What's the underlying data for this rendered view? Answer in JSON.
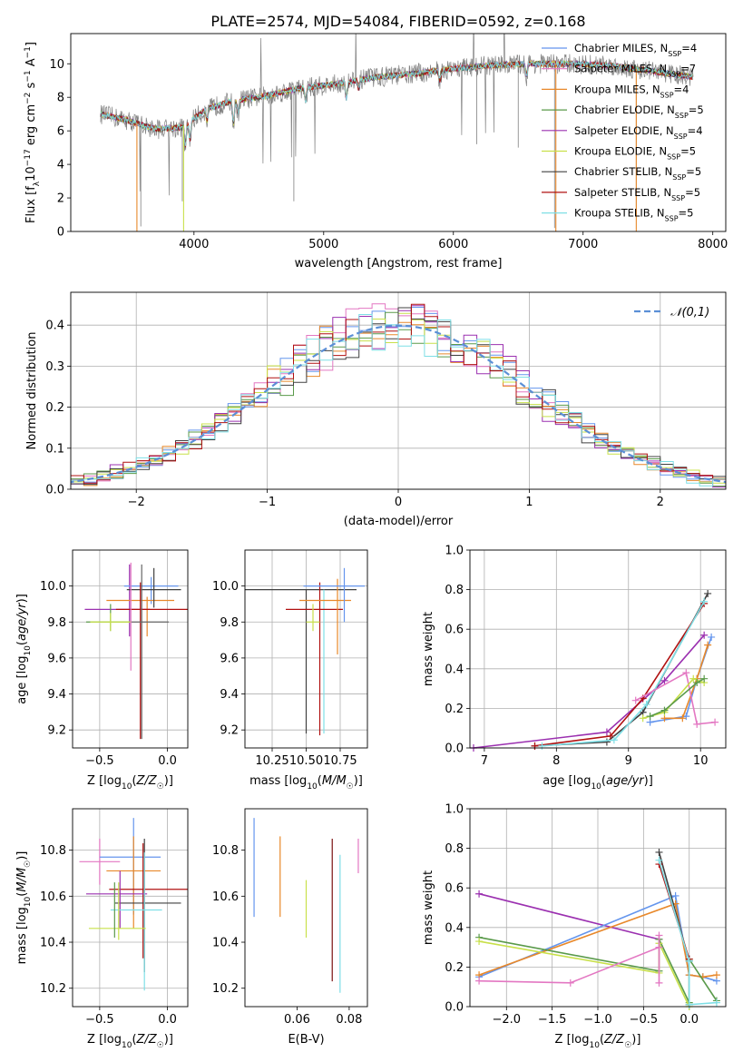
{
  "figure_title": "PLATE=2574, MJD=54084, FIBERID=0592, z=0.168",
  "colors": {
    "Chabrier MILES": "#1f77b4",
    "Salpeter MILES": "#e377c2",
    "Kroupa MILES": "#ff7f0e",
    "Chabrier ELODIE": "#7f7f7f",
    "Salpeter ELODIE": "#9467bd",
    "Kroupa ELODIE": "#bcbd22",
    "Chabrier STELIB": "#404040",
    "Salpeter STELIB": "#d62728",
    "Kroupa STELIB": "#17becf",
    "Chabrier MILES line": "#6495ed",
    "Kroupa STELIB line": "#7fdfe6",
    "gaussian": "#5b8fd6",
    "grid": "#b0b0b0"
  },
  "chart_data": [
    {
      "id": "spectrum",
      "type": "line",
      "xlabel": "wavelength [Angstrom, rest frame]",
      "ylabel": "Flux [f_λ10^-17 erg cm^-2 s^-1 A^-1]",
      "xlim": [
        3050,
        8100
      ],
      "ylim": [
        0,
        11.8
      ],
      "xticks": [
        4000,
        5000,
        6000,
        7000,
        8000
      ],
      "yticks": [
        0,
        2,
        4,
        6,
        8,
        10
      ],
      "grid": false,
      "legend_position": "right",
      "legend": [
        {
          "label": "Chabrier MILES, N",
          "sub": "SSP",
          "tail": "=4",
          "color": "#6495ed"
        },
        {
          "label": "Salpeter MILES, N",
          "sub": "SSP",
          "tail": "=7",
          "color": "#e377c2"
        },
        {
          "label": "Kroupa MILES, N",
          "sub": "SSP",
          "tail": "=4",
          "color": "#e8882a"
        },
        {
          "label": "Chabrier ELODIE, N",
          "sub": "SSP",
          "tail": "=5",
          "color": "#5a9a4a"
        },
        {
          "label": "Salpeter ELODIE, N",
          "sub": "SSP",
          "tail": "=4",
          "color": "#9b30b0"
        },
        {
          "label": "Kroupa ELODIE, N",
          "sub": "SSP",
          "tail": "=5",
          "color": "#c8e04a"
        },
        {
          "label": "Chabrier STELIB, N",
          "sub": "SSP",
          "tail": "=5",
          "color": "#404040"
        },
        {
          "label": "Salpeter STELIB, N",
          "sub": "SSP",
          "tail": "=5",
          "color": "#b01010"
        },
        {
          "label": "Kroupa STELIB, N",
          "sub": "SSP",
          "tail": "=5",
          "color": "#7fdfe6"
        }
      ],
      "continuum": {
        "x": [
          3280,
          3500,
          3700,
          3900,
          4100,
          4300,
          4500,
          4800,
          5100,
          5400,
          5700,
          6000,
          6300,
          6600,
          6900,
          7200,
          7500,
          7850
        ],
        "y": [
          7.0,
          6.6,
          6.1,
          6.2,
          7.3,
          7.8,
          8.0,
          8.5,
          8.8,
          9.2,
          9.4,
          9.7,
          9.9,
          10.0,
          10.0,
          9.9,
          9.6,
          9.2
        ]
      },
      "model_extent": [
        3280,
        7850
      ]
    },
    {
      "id": "residuals",
      "type": "histogram",
      "xlabel": "(data-model)/error",
      "ylabel": "Normed distribution",
      "xlim": [
        -2.5,
        2.5
      ],
      "ylim": [
        0,
        0.48
      ],
      "xticks": [
        -2,
        -1,
        0,
        1,
        2
      ],
      "yticks": [
        0.0,
        0.1,
        0.2,
        0.3,
        0.4
      ],
      "grid": true,
      "legend_position": "upper right",
      "legend_label": "𝒩(0,1)",
      "bin_width": 0.1,
      "series_count": 9
    },
    {
      "id": "age_vs_Z",
      "type": "errorbar",
      "xlabel": "Z [log10(Z/Z☉)]",
      "ylabel": "age [log10(age/yr)]",
      "xlim": [
        -0.7,
        0.15
      ],
      "ylim": [
        9.1,
        10.2
      ],
      "xticks": [
        -0.5,
        0.0
      ],
      "yticks": [
        9.2,
        9.4,
        9.6,
        9.8,
        10.0
      ],
      "grid": true,
      "points": [
        {
          "x": -0.28,
          "y": 9.87,
          "xerr": [
            0.33,
            0.15
          ],
          "yerr": [
            0.15,
            0.25
          ],
          "color": "#9b30b0"
        },
        {
          "x": -0.12,
          "y": 10.0,
          "xerr": [
            0.2,
            0.2
          ],
          "yerr": [
            0.1,
            0.05
          ],
          "color": "#6495ed"
        },
        {
          "x": -0.15,
          "y": 9.92,
          "xerr": [
            0.3,
            0.2
          ],
          "yerr": [
            0.2,
            0.02
          ],
          "color": "#e8882a"
        },
        {
          "x": -0.1,
          "y": 9.98,
          "xerr": [
            0.2,
            0.2
          ],
          "yerr": [
            0.1,
            0.12
          ],
          "color": "#404040"
        },
        {
          "x": -0.2,
          "y": 9.87,
          "xerr": [
            0.18,
            0.38
          ],
          "yerr": [
            0.72,
            0.15
          ],
          "color": "#b01010"
        },
        {
          "x": -0.42,
          "y": 9.8,
          "xerr": [
            0.18,
            0.15
          ],
          "yerr": [
            0.05,
            0.1
          ],
          "color": "#5a9a4a"
        },
        {
          "x": -0.42,
          "y": 9.8,
          "xerr": [
            0.15,
            0.15
          ],
          "yerr": [
            0.05,
            0.05
          ],
          "color": "#c8e04a"
        },
        {
          "x": -0.19,
          "y": 9.8,
          "xerr": [
            0.08,
            0.2
          ],
          "yerr": [
            0.65,
            0.32
          ],
          "color": "#666666"
        },
        {
          "x": -0.27,
          "y": 9.93,
          "xerr": [
            0.0,
            0.0
          ],
          "yerr": [
            0.4,
            0.2
          ],
          "color": "#e377c2"
        }
      ]
    },
    {
      "id": "age_vs_mass",
      "type": "errorbar",
      "xlabel": "mass [log10(M/M☉)]",
      "ylabel": "",
      "xlim": [
        10.05,
        10.95
      ],
      "ylim": [
        9.1,
        10.2
      ],
      "xticks": [
        10.25,
        10.5,
        10.75
      ],
      "yticks": [
        9.2,
        9.4,
        9.6,
        9.8,
        10.0
      ],
      "grid": true,
      "points": [
        {
          "x": 10.5,
          "y": 9.98,
          "xerr": [
            0.46,
            0.37
          ],
          "yerr": [
            0.8,
            0.0
          ],
          "color": "#404040"
        },
        {
          "x": 10.63,
          "y": 9.93,
          "xerr": [
            0.0,
            0.0
          ],
          "yerr": [
            0.75,
            0.05
          ],
          "color": "#7fdfe6"
        },
        {
          "x": 10.6,
          "y": 9.87,
          "xerr": [
            0.25,
            0.17
          ],
          "yerr": [
            0.7,
            0.15
          ],
          "color": "#b01010"
        },
        {
          "x": 10.73,
          "y": 9.92,
          "xerr": [
            0.28,
            0.1
          ],
          "yerr": [
            0.3,
            0.12
          ],
          "color": "#e8882a"
        },
        {
          "x": 10.78,
          "y": 10.0,
          "xerr": [
            0.3,
            0.15
          ],
          "yerr": [
            0.2,
            0.1
          ],
          "color": "#6495ed"
        },
        {
          "x": 10.55,
          "y": 9.8,
          "xerr": [
            0.05,
            0.05
          ],
          "yerr": [
            0.05,
            0.1
          ],
          "color": "#c8e04a"
        }
      ]
    },
    {
      "id": "mass_weight_vs_age",
      "type": "line",
      "xlabel": "age [log10(age/yr)]",
      "ylabel": "mass weight",
      "xlim": [
        6.8,
        10.35
      ],
      "ylim": [
        0,
        1.0
      ],
      "xticks": [
        7,
        8,
        9,
        10
      ],
      "yticks": [
        0.0,
        0.2,
        0.4,
        0.6,
        0.8,
        1.0
      ],
      "grid": true,
      "series": [
        {
          "color": "#9b30b0",
          "x": [
            6.85,
            8.7,
            9.5,
            10.05
          ],
          "y": [
            0.0,
            0.08,
            0.34,
            0.57
          ]
        },
        {
          "color": "#404040",
          "x": [
            7.7,
            8.7,
            9.2,
            10.1
          ],
          "y": [
            0.01,
            0.03,
            0.18,
            0.78
          ]
        },
        {
          "color": "#b01010",
          "x": [
            7.7,
            8.75,
            9.2,
            10.05
          ],
          "y": [
            0.01,
            0.06,
            0.25,
            0.73
          ]
        },
        {
          "color": "#7fdfe6",
          "x": [
            7.8,
            8.8,
            9.25,
            10.05
          ],
          "y": [
            0.01,
            0.04,
            0.22,
            0.74
          ]
        },
        {
          "color": "#6495ed",
          "x": [
            9.3,
            9.8,
            9.95,
            10.15
          ],
          "y": [
            0.13,
            0.16,
            0.35,
            0.56
          ]
        },
        {
          "color": "#e8882a",
          "x": [
            9.5,
            9.75,
            9.95,
            10.1
          ],
          "y": [
            0.15,
            0.15,
            0.35,
            0.52
          ]
        },
        {
          "color": "#e377c2",
          "x": [
            9.1,
            9.8,
            9.95,
            10.2
          ],
          "y": [
            0.24,
            0.38,
            0.12,
            0.13
          ]
        },
        {
          "color": "#c8e04a",
          "x": [
            9.2,
            9.5,
            9.9,
            10.05
          ],
          "y": [
            0.15,
            0.18,
            0.35,
            0.33
          ]
        },
        {
          "color": "#5a9a4a",
          "x": [
            9.3,
            9.5,
            9.95,
            10.05
          ],
          "y": [
            0.16,
            0.19,
            0.33,
            0.35
          ]
        }
      ]
    },
    {
      "id": "mass_vs_Z",
      "type": "errorbar",
      "xlabel": "Z [log10(Z/Z☉)]",
      "ylabel": "mass [log10(M/M☉)]",
      "xlim": [
        -0.7,
        0.15
      ],
      "ylim": [
        10.12,
        10.98
      ],
      "xticks": [
        -0.5,
        0.0
      ],
      "yticks": [
        10.2,
        10.4,
        10.6,
        10.8
      ],
      "grid": true,
      "points": [
        {
          "x": -0.5,
          "y": 10.75,
          "xerr": [
            0.15,
            0.15
          ],
          "yerr": [
            0.1,
            0.1
          ],
          "color": "#e377c2"
        },
        {
          "x": -0.25,
          "y": 10.77,
          "xerr": [
            0.25,
            0.2
          ],
          "yerr": [
            0.25,
            0.17
          ],
          "color": "#6495ed"
        },
        {
          "x": -0.25,
          "y": 10.71,
          "xerr": [
            0.2,
            0.2
          ],
          "yerr": [
            0.25,
            0.15
          ],
          "color": "#e8882a"
        },
        {
          "x": -0.18,
          "y": 10.63,
          "xerr": [
            0.25,
            0.33
          ],
          "yerr": [
            0.3,
            0.2
          ],
          "color": "#b01010"
        },
        {
          "x": -0.17,
          "y": 10.57,
          "xerr": [
            0.22,
            0.27
          ],
          "yerr": [
            0.3,
            0.28
          ],
          "color": "#404040"
        },
        {
          "x": -0.35,
          "y": 10.61,
          "xerr": [
            0.25,
            0.2
          ],
          "yerr": [
            0.15,
            0.1
          ],
          "color": "#9b30b0"
        },
        {
          "x": -0.17,
          "y": 10.54,
          "xerr": [
            0.25,
            0.13
          ],
          "yerr": [
            0.35,
            0.25
          ],
          "color": "#7fdfe6"
        },
        {
          "x": -0.36,
          "y": 10.46,
          "xerr": [
            0.22,
            0.2
          ],
          "yerr": [
            0.05,
            0.2
          ],
          "color": "#c8e04a"
        },
        {
          "x": -0.39,
          "y": 10.46,
          "xerr": [
            0.0,
            0.0
          ],
          "yerr": [
            0.04,
            0.2
          ],
          "color": "#5a9a4a"
        }
      ]
    },
    {
      "id": "mass_vs_ebv",
      "type": "errorbar",
      "xlabel": "E(B-V)",
      "ylabel": "",
      "xlim": [
        0.04,
        0.087
      ],
      "ylim": [
        10.12,
        10.98
      ],
      "xticks": [
        0.06,
        0.08
      ],
      "yticks": [
        10.2,
        10.4,
        10.6,
        10.8
      ],
      "grid": false,
      "points": [
        {
          "x": 0.0435,
          "y": 10.73,
          "xerr": [
            0,
            0
          ],
          "yerr": [
            0.22,
            0.21
          ],
          "color": "#6495ed"
        },
        {
          "x": 0.0535,
          "y": 10.69,
          "xerr": [
            0,
            0
          ],
          "yerr": [
            0.18,
            0.17
          ],
          "color": "#e8882a"
        },
        {
          "x": 0.0635,
          "y": 10.54,
          "xerr": [
            0,
            0
          ],
          "yerr": [
            0.12,
            0.13
          ],
          "color": "#c8e04a"
        },
        {
          "x": 0.0735,
          "y": 10.55,
          "xerr": [
            0,
            0
          ],
          "yerr": [
            0.32,
            0.3
          ],
          "color": "#7a1010"
        },
        {
          "x": 0.0765,
          "y": 10.48,
          "xerr": [
            0,
            0
          ],
          "yerr": [
            0.3,
            0.3
          ],
          "color": "#7fdfe6"
        },
        {
          "x": 0.0835,
          "y": 10.77,
          "xerr": [
            0,
            0
          ],
          "yerr": [
            0.07,
            0.08
          ],
          "color": "#e377c2"
        }
      ]
    },
    {
      "id": "mass_weight_vs_Z",
      "type": "line",
      "xlabel": "Z [log10(Z/Z☉)]",
      "ylabel": "mass weight",
      "xlim": [
        -2.4,
        0.4
      ],
      "ylim": [
        0,
        1.0
      ],
      "xticks": [
        -2.0,
        -1.5,
        -1.0,
        -0.5,
        0.0
      ],
      "yticks": [
        0.0,
        0.2,
        0.4,
        0.6,
        0.8,
        1.0
      ],
      "grid": true,
      "series": [
        {
          "color": "#9b30b0",
          "x": [
            -2.3,
            -0.33
          ],
          "y": [
            0.57,
            0.34
          ]
        },
        {
          "color": "#6495ed",
          "x": [
            -2.3,
            -0.15,
            0.0,
            0.15,
            0.3
          ],
          "y": [
            0.15,
            0.56,
            0.16,
            0.15,
            0.13
          ]
        },
        {
          "color": "#e8882a",
          "x": [
            -2.3,
            -0.15,
            0.0,
            0.15,
            0.3
          ],
          "y": [
            0.16,
            0.52,
            0.16,
            0.15,
            0.16
          ]
        },
        {
          "color": "#5a9a4a",
          "x": [
            -2.3,
            -0.33,
            -0.33,
            0.0,
            0.0,
            0.3
          ],
          "y": [
            0.35,
            0.18,
            0.34,
            0.02,
            0.24,
            0.03
          ]
        },
        {
          "color": "#c8e04a",
          "x": [
            -2.3,
            -0.33,
            -0.33,
            0.0
          ],
          "y": [
            0.33,
            0.17,
            0.32,
            0.0
          ]
        },
        {
          "color": "#e377c2",
          "x": [
            -2.3,
            -1.3,
            -0.33,
            -0.33,
            -0.33
          ],
          "y": [
            0.13,
            0.12,
            0.3,
            0.36,
            0.12
          ]
        },
        {
          "color": "#404040",
          "x": [
            -0.33,
            0.0,
            0.0
          ],
          "y": [
            0.78,
            0.23,
            0.01
          ]
        },
        {
          "color": "#b01010",
          "x": [
            -0.33,
            0.0
          ],
          "y": [
            0.72,
            0.24
          ]
        },
        {
          "color": "#7fdfe6",
          "x": [
            -0.33,
            0.0,
            0.0,
            0.3
          ],
          "y": [
            0.74,
            0.23,
            0.01,
            0.02
          ]
        }
      ]
    }
  ]
}
